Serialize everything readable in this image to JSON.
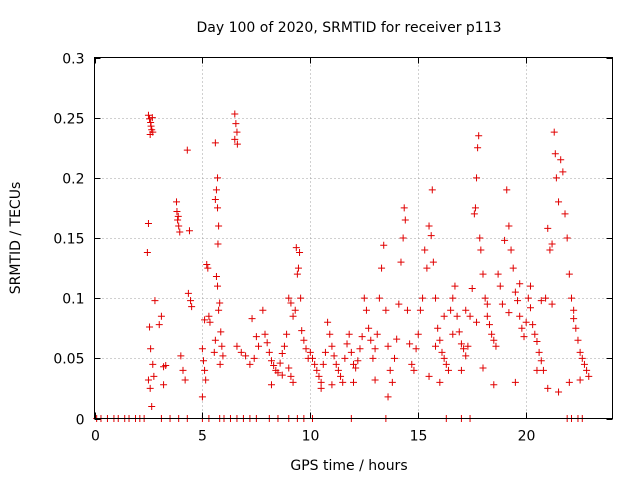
{
  "chart_data": {
    "type": "scatter",
    "title": "Day 100 of 2020, SRMTID for receiver p113",
    "xlabel": "GPS time / hours",
    "ylabel": "SRMTID / TECUs",
    "xlim": [
      0,
      24
    ],
    "ylim": [
      0,
      0.3
    ],
    "xticks": [
      0,
      5,
      10,
      15,
      20
    ],
    "xtick_labels": [
      "0",
      "5",
      "10",
      "15",
      "20"
    ],
    "yticks": [
      0,
      0.05,
      0.1,
      0.15,
      0.2,
      0.25,
      0.3
    ],
    "ytick_labels": [
      "0",
      "0.05",
      "0.1",
      "0.15",
      "0.2",
      "0.25",
      "0.3"
    ],
    "grid": true,
    "marker": "+",
    "color": "#e00000",
    "zero_points_x": [
      0.1,
      0.3,
      0.6,
      0.9,
      1.1,
      1.4,
      1.6,
      1.9,
      2.1,
      2.3,
      3.1,
      3.5,
      3.9,
      4.3,
      5.0,
      5.3,
      5.8,
      6.0,
      6.3,
      6.6,
      6.9,
      7.2,
      7.5,
      8.1,
      8.5,
      9.0,
      9.4,
      9.7,
      10.1,
      11.9,
      13.5,
      16.3,
      17.0,
      17.4,
      21.9,
      22.1,
      22.4,
      22.6
    ],
    "series": [
      {
        "name": "SRMTID",
        "points": [
          [
            2.5,
            0.252
          ],
          [
            2.55,
            0.249
          ],
          [
            2.6,
            0.246
          ],
          [
            2.62,
            0.243
          ],
          [
            2.65,
            0.24
          ],
          [
            2.7,
            0.238
          ],
          [
            2.68,
            0.25
          ],
          [
            2.58,
            0.236
          ],
          [
            2.5,
            0.162
          ],
          [
            2.45,
            0.138
          ],
          [
            2.55,
            0.076
          ],
          [
            2.6,
            0.058
          ],
          [
            2.7,
            0.045
          ],
          [
            2.75,
            0.035
          ],
          [
            2.8,
            0.098
          ],
          [
            2.65,
            0.01
          ],
          [
            2.5,
            0.032
          ],
          [
            2.58,
            0.025
          ],
          [
            3.0,
            0.078
          ],
          [
            3.1,
            0.085
          ],
          [
            3.2,
            0.043
          ],
          [
            3.3,
            0.044
          ],
          [
            3.2,
            0.028
          ],
          [
            3.8,
            0.18
          ],
          [
            3.82,
            0.172
          ],
          [
            3.85,
            0.165
          ],
          [
            3.9,
            0.16
          ],
          [
            3.95,
            0.155
          ],
          [
            3.88,
            0.168
          ],
          [
            4.3,
            0.223
          ],
          [
            4.4,
            0.156
          ],
          [
            4.35,
            0.104
          ],
          [
            4.45,
            0.098
          ],
          [
            4.5,
            0.093
          ],
          [
            4.0,
            0.052
          ],
          [
            4.1,
            0.04
          ],
          [
            4.2,
            0.032
          ],
          [
            5.0,
            0.058
          ],
          [
            5.05,
            0.048
          ],
          [
            5.1,
            0.04
          ],
          [
            5.15,
            0.032
          ],
          [
            5.0,
            0.018
          ],
          [
            5.2,
            0.128
          ],
          [
            5.25,
            0.125
          ],
          [
            5.3,
            0.085
          ],
          [
            5.35,
            0.08
          ],
          [
            5.1,
            0.082
          ],
          [
            5.6,
            0.229
          ],
          [
            5.7,
            0.2
          ],
          [
            5.65,
            0.19
          ],
          [
            5.6,
            0.182
          ],
          [
            5.7,
            0.175
          ],
          [
            5.75,
            0.16
          ],
          [
            5.72,
            0.145
          ],
          [
            5.65,
            0.118
          ],
          [
            5.7,
            0.11
          ],
          [
            5.8,
            0.096
          ],
          [
            5.75,
            0.09
          ],
          [
            5.85,
            0.072
          ],
          [
            5.9,
            0.06
          ],
          [
            5.95,
            0.052
          ],
          [
            5.82,
            0.045
          ],
          [
            5.6,
            0.065
          ],
          [
            5.55,
            0.055
          ],
          [
            6.5,
            0.253
          ],
          [
            6.55,
            0.245
          ],
          [
            6.6,
            0.238
          ],
          [
            6.5,
            0.232
          ],
          [
            6.62,
            0.228
          ],
          [
            6.6,
            0.06
          ],
          [
            6.8,
            0.055
          ],
          [
            7.0,
            0.052
          ],
          [
            7.2,
            0.045
          ],
          [
            7.4,
            0.05
          ],
          [
            7.6,
            0.06
          ],
          [
            7.8,
            0.09
          ],
          [
            7.9,
            0.07
          ],
          [
            8.0,
            0.063
          ],
          [
            8.1,
            0.055
          ],
          [
            8.2,
            0.048
          ],
          [
            8.3,
            0.044
          ],
          [
            8.4,
            0.04
          ],
          [
            8.5,
            0.038
          ],
          [
            8.6,
            0.046
          ],
          [
            8.7,
            0.054
          ],
          [
            8.8,
            0.06
          ],
          [
            8.9,
            0.07
          ],
          [
            9.0,
            0.1
          ],
          [
            9.1,
            0.096
          ],
          [
            9.2,
            0.085
          ],
          [
            9.3,
            0.09
          ],
          [
            9.35,
            0.142
          ],
          [
            9.4,
            0.12
          ],
          [
            9.45,
            0.125
          ],
          [
            9.5,
            0.138
          ],
          [
            9.55,
            0.1
          ],
          [
            9.6,
            0.073
          ],
          [
            9.7,
            0.065
          ],
          [
            9.8,
            0.058
          ],
          [
            9.9,
            0.05
          ],
          [
            9.0,
            0.042
          ],
          [
            9.1,
            0.035
          ],
          [
            9.2,
            0.03
          ],
          [
            8.7,
            0.036
          ],
          [
            8.2,
            0.028
          ],
          [
            7.5,
            0.068
          ],
          [
            7.3,
            0.083
          ],
          [
            10.0,
            0.055
          ],
          [
            10.1,
            0.05
          ],
          [
            10.2,
            0.045
          ],
          [
            10.3,
            0.04
          ],
          [
            10.4,
            0.035
          ],
          [
            10.5,
            0.03
          ],
          [
            10.6,
            0.045
          ],
          [
            10.7,
            0.055
          ],
          [
            10.8,
            0.08
          ],
          [
            10.9,
            0.07
          ],
          [
            11.0,
            0.06
          ],
          [
            11.1,
            0.052
          ],
          [
            11.2,
            0.045
          ],
          [
            11.3,
            0.04
          ],
          [
            11.4,
            0.035
          ],
          [
            11.5,
            0.03
          ],
          [
            11.6,
            0.05
          ],
          [
            11.7,
            0.062
          ],
          [
            11.8,
            0.07
          ],
          [
            11.9,
            0.055
          ],
          [
            12.0,
            0.045
          ],
          [
            12.1,
            0.042
          ],
          [
            12.2,
            0.048
          ],
          [
            12.3,
            0.058
          ],
          [
            12.4,
            0.068
          ],
          [
            12.5,
            0.1
          ],
          [
            12.6,
            0.09
          ],
          [
            12.7,
            0.075
          ],
          [
            12.8,
            0.065
          ],
          [
            12.9,
            0.05
          ],
          [
            13.0,
            0.058
          ],
          [
            13.1,
            0.07
          ],
          [
            13.2,
            0.1
          ],
          [
            13.3,
            0.125
          ],
          [
            13.4,
            0.144
          ],
          [
            13.5,
            0.09
          ],
          [
            13.6,
            0.06
          ],
          [
            13.7,
            0.04
          ],
          [
            13.8,
            0.03
          ],
          [
            13.9,
            0.05
          ],
          [
            14.0,
            0.066
          ],
          [
            14.1,
            0.095
          ],
          [
            14.2,
            0.13
          ],
          [
            14.3,
            0.15
          ],
          [
            14.35,
            0.175
          ],
          [
            14.4,
            0.165
          ],
          [
            14.5,
            0.09
          ],
          [
            14.6,
            0.062
          ],
          [
            14.7,
            0.045
          ],
          [
            14.8,
            0.04
          ],
          [
            14.9,
            0.058
          ],
          [
            15.0,
            0.07
          ],
          [
            10.5,
            0.025
          ],
          [
            11.0,
            0.028
          ],
          [
            12.0,
            0.03
          ],
          [
            13.0,
            0.032
          ],
          [
            13.6,
            0.018
          ],
          [
            15.1,
            0.09
          ],
          [
            15.2,
            0.1
          ],
          [
            15.3,
            0.14
          ],
          [
            15.4,
            0.125
          ],
          [
            15.5,
            0.16
          ],
          [
            15.6,
            0.152
          ],
          [
            15.65,
            0.19
          ],
          [
            15.7,
            0.13
          ],
          [
            15.8,
            0.1
          ],
          [
            15.9,
            0.075
          ],
          [
            16.0,
            0.065
          ],
          [
            16.1,
            0.055
          ],
          [
            16.2,
            0.05
          ],
          [
            16.3,
            0.045
          ],
          [
            16.4,
            0.04
          ],
          [
            16.5,
            0.09
          ],
          [
            16.6,
            0.1
          ],
          [
            16.7,
            0.11
          ],
          [
            16.8,
            0.085
          ],
          [
            16.9,
            0.072
          ],
          [
            17.0,
            0.062
          ],
          [
            17.1,
            0.058
          ],
          [
            17.2,
            0.052
          ],
          [
            17.3,
            0.06
          ],
          [
            17.4,
            0.085
          ],
          [
            17.5,
            0.108
          ],
          [
            17.6,
            0.17
          ],
          [
            17.65,
            0.175
          ],
          [
            17.7,
            0.2
          ],
          [
            17.75,
            0.225
          ],
          [
            17.8,
            0.235
          ],
          [
            17.85,
            0.15
          ],
          [
            17.9,
            0.14
          ],
          [
            18.0,
            0.12
          ],
          [
            18.1,
            0.1
          ],
          [
            18.2,
            0.085
          ],
          [
            18.3,
            0.078
          ],
          [
            18.4,
            0.07
          ],
          [
            18.5,
            0.065
          ],
          [
            18.6,
            0.06
          ],
          [
            18.7,
            0.12
          ],
          [
            18.8,
            0.11
          ],
          [
            18.9,
            0.095
          ],
          [
            19.0,
            0.148
          ],
          [
            19.1,
            0.19
          ],
          [
            19.2,
            0.16
          ],
          [
            19.3,
            0.14
          ],
          [
            19.4,
            0.125
          ],
          [
            19.5,
            0.105
          ],
          [
            19.6,
            0.098
          ],
          [
            19.7,
            0.085
          ],
          [
            19.8,
            0.075
          ],
          [
            19.9,
            0.068
          ],
          [
            20.0,
            0.08
          ],
          [
            20.1,
            0.1
          ],
          [
            20.2,
            0.092
          ],
          [
            20.3,
            0.078
          ],
          [
            20.4,
            0.07
          ],
          [
            20.5,
            0.064
          ],
          [
            20.6,
            0.055
          ],
          [
            20.7,
            0.048
          ],
          [
            20.8,
            0.04
          ],
          [
            20.9,
            0.1
          ],
          [
            21.0,
            0.158
          ],
          [
            21.1,
            0.14
          ],
          [
            21.2,
            0.145
          ],
          [
            21.3,
            0.238
          ],
          [
            21.35,
            0.22
          ],
          [
            21.4,
            0.2
          ],
          [
            21.5,
            0.18
          ],
          [
            21.6,
            0.215
          ],
          [
            21.7,
            0.205
          ],
          [
            21.8,
            0.17
          ],
          [
            21.9,
            0.15
          ],
          [
            22.0,
            0.12
          ],
          [
            22.1,
            0.1
          ],
          [
            22.2,
            0.09
          ],
          [
            22.3,
            0.075
          ],
          [
            22.4,
            0.065
          ],
          [
            22.5,
            0.055
          ],
          [
            22.6,
            0.05
          ],
          [
            22.7,
            0.045
          ],
          [
            22.8,
            0.04
          ],
          [
            22.9,
            0.035
          ],
          [
            15.5,
            0.035
          ],
          [
            16.0,
            0.03
          ],
          [
            17.0,
            0.04
          ],
          [
            18.0,
            0.042
          ],
          [
            18.5,
            0.028
          ],
          [
            19.5,
            0.03
          ],
          [
            20.5,
            0.04
          ],
          [
            21.0,
            0.025
          ],
          [
            21.5,
            0.022
          ],
          [
            22.0,
            0.03
          ],
          [
            22.5,
            0.032
          ],
          [
            15.8,
            0.06
          ],
          [
            16.6,
            0.07
          ],
          [
            17.2,
            0.09
          ],
          [
            18.2,
            0.095
          ],
          [
            19.2,
            0.088
          ],
          [
            20.2,
            0.11
          ],
          [
            21.2,
            0.095
          ],
          [
            22.2,
            0.083
          ],
          [
            19.7,
            0.112
          ],
          [
            20.7,
            0.098
          ],
          [
            17.7,
            0.08
          ],
          [
            16.2,
            0.085
          ]
        ]
      }
    ]
  }
}
